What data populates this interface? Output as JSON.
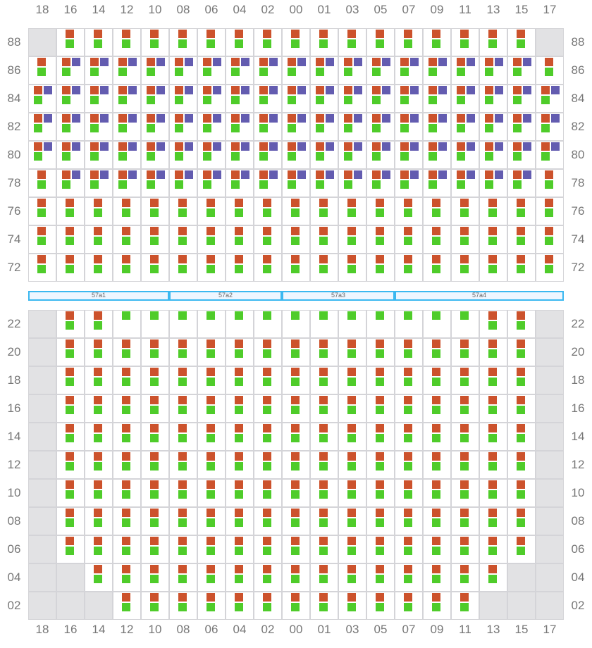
{
  "columns": [
    "18",
    "16",
    "14",
    "12",
    "10",
    "08",
    "06",
    "04",
    "02",
    "00",
    "01",
    "03",
    "05",
    "07",
    "09",
    "11",
    "13",
    "15",
    "17"
  ],
  "colors": {
    "orange": "#cc522c",
    "green": "#4fcc2a",
    "purple": "#635cb0",
    "unavailable": "#e2e2e4",
    "grid": "#d4d4d8",
    "segment_border": "#3bb8f0"
  },
  "legend_codes": {
    "X": "unavailable",
    "OG": "orange+green",
    "OGP": "orange+purple+green",
    "G": "green"
  },
  "top_block": [
    {
      "label": "88",
      "cells": "X OG OG OG OG OG OG OG OG OG OG OG OG OG OG OG OG OG X"
    },
    {
      "label": "86",
      "cells": "OG OGP OGP OGP OGP OGP OGP OGP OGP OGP OGP OGP OGP OGP OGP OGP OGP OGP OG"
    },
    {
      "label": "84",
      "cells": "OGP OGP OGP OGP OGP OGP OGP OGP OGP OGP OGP OGP OGP OGP OGP OGP OGP OGP OGP"
    },
    {
      "label": "82",
      "cells": "OGP OGP OGP OGP OGP OGP OGP OGP OGP OGP OGP OGP OGP OGP OGP OGP OGP OGP OGP"
    },
    {
      "label": "80",
      "cells": "OGP OGP OGP OGP OGP OGP OGP OGP OGP OGP OGP OGP OGP OGP OGP OGP OGP OGP OGP"
    },
    {
      "label": "78",
      "cells": "OG OGP OGP OGP OGP OGP OGP OGP OGP OGP OGP OGP OGP OGP OGP OGP OGP OGP OG"
    },
    {
      "label": "76",
      "cells": "OG OG OG OG OG OG OG OG OG OG OG OG OG OG OG OG OG OG OG"
    },
    {
      "label": "74",
      "cells": "OG OG OG OG OG OG OG OG OG OG OG OG OG OG OG OG OG OG OG"
    },
    {
      "label": "72",
      "cells": "OG OG OG OG OG OG OG OG OG OG OG OG OG OG OG OG OG OG OG"
    }
  ],
  "segments": [
    {
      "label": "57a1",
      "from": 0,
      "to": 5
    },
    {
      "label": "57a2",
      "from": 5,
      "to": 9
    },
    {
      "label": "57a3",
      "from": 9,
      "to": 13
    },
    {
      "label": "57a4",
      "from": 13,
      "to": 19
    }
  ],
  "bottom_block": [
    {
      "label": "22",
      "cells": "X OG OG G G G G G G G G G G G G G OG OG X"
    },
    {
      "label": "20",
      "cells": "X OG OG OG OG OG OG OG OG OG OG OG OG OG OG OG OG OG X"
    },
    {
      "label": "18",
      "cells": "X OG OG OG OG OG OG OG OG OG OG OG OG OG OG OG OG OG X"
    },
    {
      "label": "16",
      "cells": "X OG OG OG OG OG OG OG OG OG OG OG OG OG OG OG OG OG X"
    },
    {
      "label": "14",
      "cells": "X OG OG OG OG OG OG OG OG OG OG OG OG OG OG OG OG OG X"
    },
    {
      "label": "12",
      "cells": "X OG OG OG OG OG OG OG OG OG OG OG OG OG OG OG OG OG X"
    },
    {
      "label": "10",
      "cells": "X OG OG OG OG OG OG OG OG OG OG OG OG OG OG OG OG OG X"
    },
    {
      "label": "08",
      "cells": "X OG OG OG OG OG OG OG OG OG OG OG OG OG OG OG OG OG X"
    },
    {
      "label": "06",
      "cells": "X OG OG OG OG OG OG OG OG OG OG OG OG OG OG OG OG OG X"
    },
    {
      "label": "04",
      "cells": "X X OG OG OG OG OG OG OG OG OG OG OG OG OG OG OG X X"
    },
    {
      "label": "02",
      "cells": "X X X OG OG OG OG OG OG OG OG OG OG OG OG OG X X X"
    }
  ]
}
